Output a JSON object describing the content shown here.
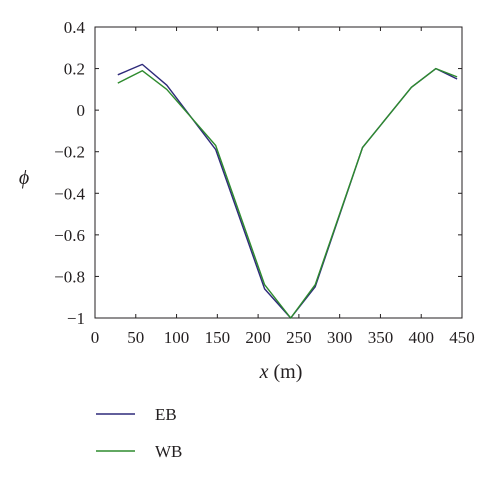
{
  "chart_data": {
    "type": "line",
    "title": "",
    "xlabel_var": "x",
    "xlabel_unit": "(m)",
    "ylabel": "ϕ",
    "xlim": [
      0,
      450
    ],
    "ylim": [
      -1,
      0.4
    ],
    "xticks": [
      0,
      50,
      100,
      150,
      200,
      250,
      300,
      350,
      400,
      450
    ],
    "yticks": [
      0.4,
      0.2,
      0,
      -0.2,
      -0.4,
      -0.6,
      -0.8,
      -1
    ],
    "ytick_labels": [
      "0.4",
      "0.2",
      "0",
      "−0.2",
      "−0.4",
      "−0.6",
      "−0.8",
      "−1"
    ],
    "grid": false,
    "legend_position": "bottom-left, below plot",
    "series": [
      {
        "name": "EB",
        "color": "#2e2a7a",
        "x": [
          28,
          58,
          88,
          148,
          208,
          240,
          270,
          328,
          388,
          418,
          444
        ],
        "y": [
          0.17,
          0.22,
          0.12,
          -0.19,
          -0.86,
          -1.0,
          -0.85,
          -0.18,
          0.11,
          0.2,
          0.15
        ]
      },
      {
        "name": "WB",
        "color": "#2e8b2e",
        "x": [
          28,
          58,
          88,
          148,
          208,
          240,
          270,
          328,
          388,
          418,
          444
        ],
        "y": [
          0.13,
          0.19,
          0.1,
          -0.17,
          -0.84,
          -1.0,
          -0.84,
          -0.18,
          0.11,
          0.2,
          0.16
        ]
      }
    ]
  }
}
